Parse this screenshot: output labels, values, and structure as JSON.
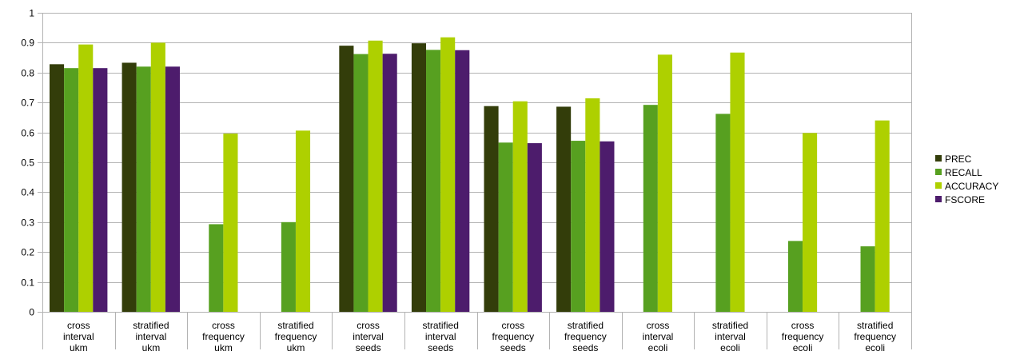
{
  "chart_data": {
    "type": "bar",
    "title": "",
    "xlabel": "",
    "ylabel": "",
    "ylim": [
      0,
      1
    ],
    "yticks": [
      0,
      0.1,
      0.2,
      0.3,
      0.4,
      0.5,
      0.6,
      0.7,
      0.8,
      0.9,
      1
    ],
    "ytick_labels": [
      "0",
      "0.1",
      "0.2",
      "0.3",
      "0.4",
      "0.5",
      "0.6",
      "0.7",
      "0.8",
      "0.9",
      "1"
    ],
    "grid": true,
    "legend_position": "right",
    "categories": [
      [
        "cross",
        "interval",
        "ukm"
      ],
      [
        "stratified",
        "interval",
        "ukm"
      ],
      [
        "cross",
        "frequency",
        "ukm"
      ],
      [
        "stratified",
        "frequency",
        "ukm"
      ],
      [
        "cross",
        "interval",
        "seeds"
      ],
      [
        "stratified",
        "interval",
        "seeds"
      ],
      [
        "cross",
        "frequency",
        "seeds"
      ],
      [
        "stratified",
        "frequency",
        "seeds"
      ],
      [
        "cross",
        "interval",
        "ecoli"
      ],
      [
        "stratified",
        "interval",
        "ecoli"
      ],
      [
        "cross",
        "frequency",
        "ecoli"
      ],
      [
        "stratified",
        "frequency",
        "ecoli"
      ]
    ],
    "series": [
      {
        "name": "PREC",
        "color": "#333d0a",
        "values": [
          0.828,
          0.833,
          0,
          0,
          0.89,
          0.898,
          0.688,
          0.686,
          0,
          0,
          0,
          0
        ]
      },
      {
        "name": "RECALL",
        "color": "#57a020",
        "values": [
          0.815,
          0.82,
          0.293,
          0.3,
          0.862,
          0.876,
          0.566,
          0.572,
          0.692,
          0.662,
          0.237,
          0.219
        ]
      },
      {
        "name": "ACCURACY",
        "color": "#aed000",
        "values": [
          0.894,
          0.9,
          0.596,
          0.606,
          0.907,
          0.918,
          0.704,
          0.714,
          0.86,
          0.867,
          0.598,
          0.64
        ]
      },
      {
        "name": "FSCORE",
        "color": "#4d1c6c",
        "values": [
          0.815,
          0.82,
          0,
          0,
          0.863,
          0.875,
          0.564,
          0.57,
          0,
          0,
          0,
          0
        ]
      }
    ]
  }
}
